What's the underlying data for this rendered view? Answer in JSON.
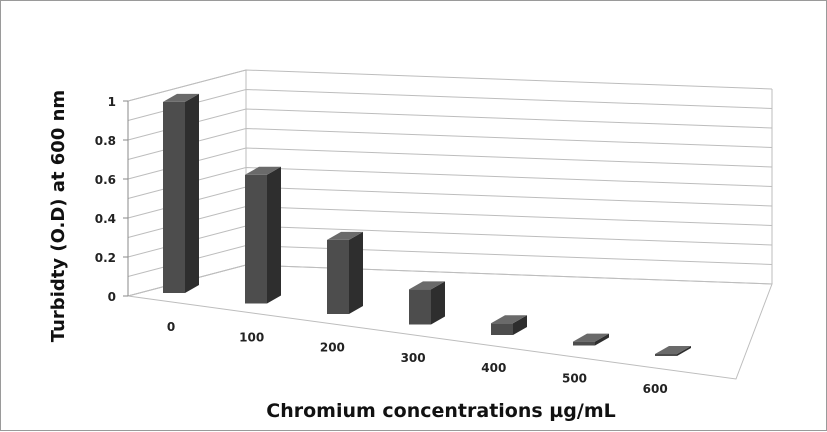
{
  "chart_data": {
    "type": "bar",
    "title": "",
    "xlabel": "Chromium concentrations µg/mL",
    "ylabel": "Turbidty (O.D) at 600 nm",
    "categories": [
      "0",
      "100",
      "200",
      "300",
      "400",
      "500",
      "600"
    ],
    "values": [
      0.98,
      0.66,
      0.38,
      0.18,
      0.06,
      0.02,
      0.01
    ],
    "ylim": [
      0,
      1
    ],
    "y_ticks": [
      "0",
      "0.2",
      "0.4",
      "0.6",
      "0.8",
      "1"
    ],
    "grid": true,
    "style": "3d-column",
    "colors": {
      "bar_front": "#4d4d4d",
      "bar_side": "#2e2e2e",
      "bar_top": "#6a6a6a",
      "grid": "#bdbdbd"
    }
  }
}
